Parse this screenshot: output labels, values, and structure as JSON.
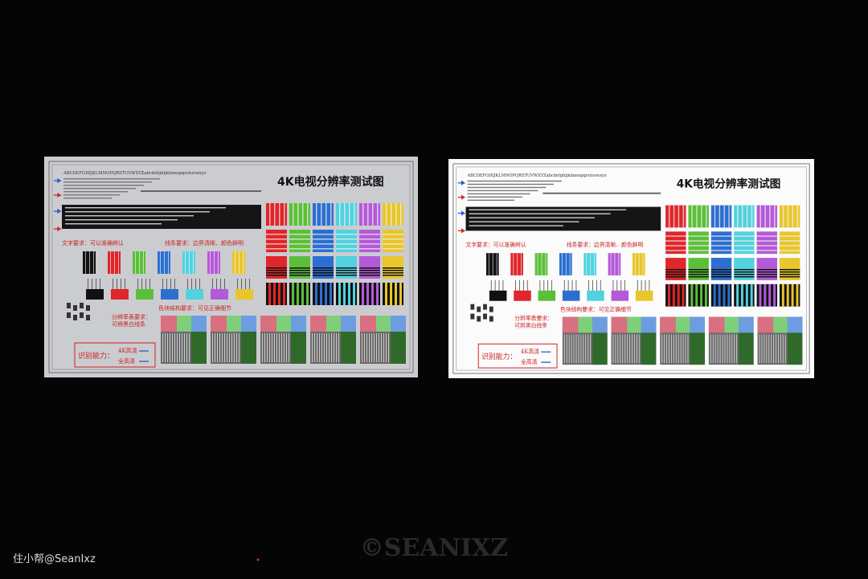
{
  "panels": [
    {
      "title": "4K电视分辨率测试图",
      "alphabet": "ABCDEFGHIJKLMNOPQRSTUVWXYZabcdefghijklmnopqrstuvwxyz",
      "text_requirement": "文字要求：可以准确辨认",
      "line_requirement": "线条要求：边界清晰、颜色鲜明",
      "color_requirement": "色块结构要求：可见正确细节",
      "resolution_requirement": [
        "分辨率表要求：",
        "可辨黑白线条"
      ],
      "ability": "识别能力：",
      "uhd": "4K高清",
      "fhd": "全高清"
    },
    {
      "title": "4K电视分辨率测试图",
      "alphabet": "ABCDEFGHIJKLMNOPQRSTUVWXYZabcdefghijklmnopqrstuvwxyz",
      "text_requirement": "文字要求：可以准确辨认",
      "line_requirement": "线条要求：边界清晰、颜色鲜明",
      "color_requirement": "色块结构要求：可见正确细节",
      "resolution_requirement": [
        "分辨率表要求：",
        "可辨黑白线条"
      ],
      "ability": "识别能力：",
      "uhd": "4K高清",
      "fhd": "全高清"
    }
  ],
  "watermark": "©SEANIXZ",
  "credit": "住小帮@SeanIxz"
}
